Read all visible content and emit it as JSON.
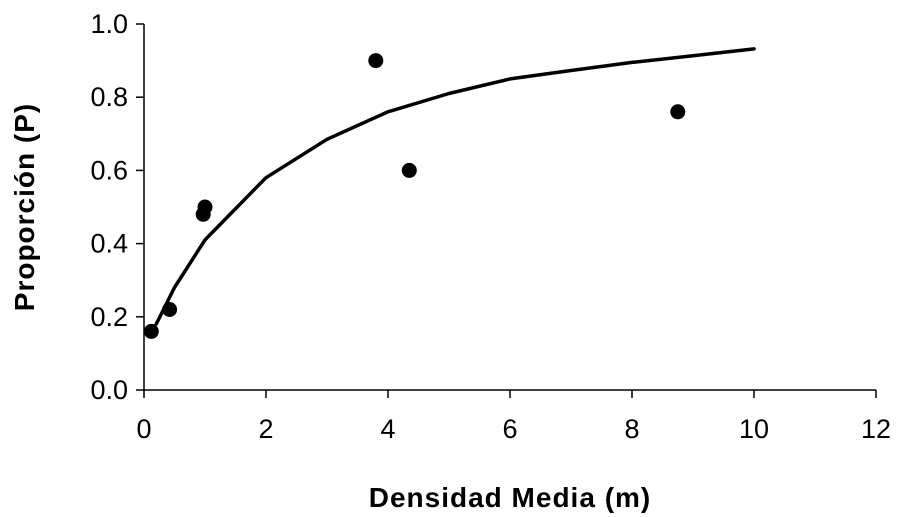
{
  "chart_data": {
    "type": "scatter",
    "title": "",
    "xlabel": "Densidad Media (m)",
    "ylabel": "Proporción (P)",
    "xlim": [
      0,
      12
    ],
    "ylim": [
      0,
      1.0
    ],
    "xticks": [
      0,
      2,
      4,
      6,
      8,
      10,
      12
    ],
    "yticks": [
      0.0,
      0.2,
      0.4,
      0.6,
      0.8,
      1.0
    ],
    "xtick_labels": [
      "0",
      "2",
      "4",
      "6",
      "8",
      "10",
      "12"
    ],
    "ytick_labels": [
      "0.0",
      "0.2",
      "0.4",
      "0.6",
      "0.8",
      "1.0"
    ],
    "grid": false,
    "legend": "none",
    "colors": {
      "points": "#000000",
      "line": "#000000",
      "axes": "#000000"
    },
    "points": {
      "x": [
        0.12,
        0.42,
        0.97,
        1.0,
        3.8,
        4.35,
        8.75
      ],
      "y": [
        0.16,
        0.22,
        0.48,
        0.5,
        0.9,
        0.6,
        0.76
      ]
    },
    "fitted_line": {
      "x": [
        0.2,
        0.5,
        1.0,
        2.0,
        3.0,
        4.0,
        5.0,
        6.0,
        7.0,
        8.0,
        9.0,
        10.0
      ],
      "y": [
        0.18,
        0.28,
        0.41,
        0.58,
        0.685,
        0.76,
        0.81,
        0.85,
        0.873,
        0.895,
        0.913,
        0.932
      ]
    }
  }
}
